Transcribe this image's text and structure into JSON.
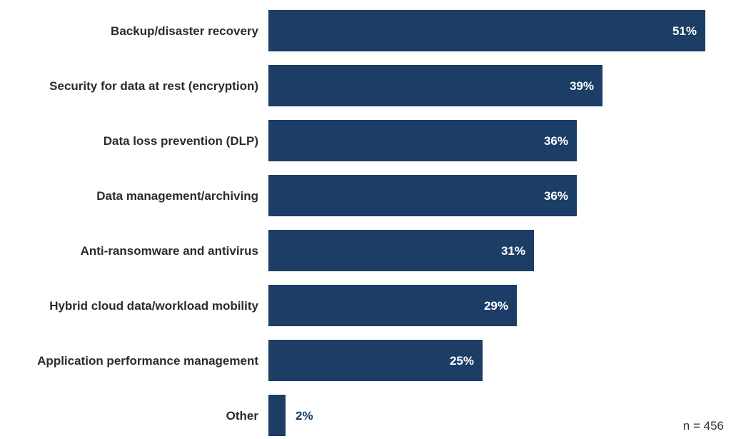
{
  "chart_data": {
    "type": "bar",
    "orientation": "horizontal",
    "categories": [
      "Backup/disaster recovery",
      "Security for data at rest (encryption)",
      "Data loss prevention (DLP)",
      "Data management/archiving",
      "Anti-ransomware and antivirus",
      "Hybrid cloud data/workload mobility",
      "Application performance management",
      "Other"
    ],
    "values": [
      51,
      39,
      36,
      36,
      31,
      29,
      25,
      2
    ],
    "value_labels": [
      "51%",
      "39%",
      "36%",
      "36%",
      "31%",
      "29%",
      "25%",
      "2%"
    ],
    "xlim": [
      0,
      51
    ],
    "grid": false,
    "legend": "none",
    "note": "n = 456",
    "colors": {
      "bar": "#1b3d66",
      "label_inside": "#ffffff",
      "label_outside": "#1b3d66",
      "category_text": "#2b2b2b"
    }
  }
}
